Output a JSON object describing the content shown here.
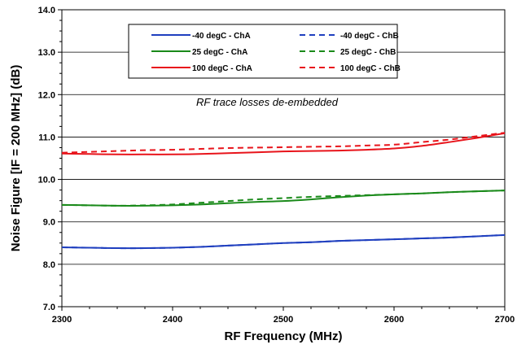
{
  "chart_data": {
    "type": "line",
    "xlabel": "RF Frequency (MHz)",
    "ylabel": "Noise Figure [IF = 200 MHz] (dB)",
    "xlim": [
      2300,
      2700
    ],
    "ylim": [
      7.0,
      14.0
    ],
    "xticks": [
      "2300",
      "2400",
      "2500",
      "2600",
      "2700"
    ],
    "yticks": [
      "7.0",
      "8.0",
      "9.0",
      "10.0",
      "11.0",
      "12.0",
      "13.0",
      "14.0"
    ],
    "grid": "horizontal",
    "legend_position": "top",
    "annotation": "RF trace losses de-embedded",
    "x": [
      2300,
      2325,
      2350,
      2375,
      2400,
      2425,
      2450,
      2475,
      2500,
      2525,
      2550,
      2575,
      2600,
      2625,
      2650,
      2675,
      2700
    ],
    "series": [
      {
        "name": "-40 degC - ChA",
        "color": "#1f3fbf",
        "dash": "solid",
        "values": [
          8.4,
          8.39,
          8.38,
          8.38,
          8.39,
          8.41,
          8.44,
          8.47,
          8.5,
          8.52,
          8.55,
          8.57,
          8.59,
          8.61,
          8.63,
          8.66,
          8.69
        ]
      },
      {
        "name": "-40 degC - ChB",
        "color": "#1f3fbf",
        "dash": "dashed",
        "values": [
          8.4,
          8.39,
          8.38,
          8.38,
          8.39,
          8.41,
          8.44,
          8.47,
          8.5,
          8.52,
          8.55,
          8.57,
          8.59,
          8.61,
          8.63,
          8.66,
          8.69
        ]
      },
      {
        "name": "25 degC - ChA",
        "color": "#1a8a1a",
        "dash": "solid",
        "values": [
          9.4,
          9.39,
          9.38,
          9.38,
          9.39,
          9.41,
          9.44,
          9.47,
          9.49,
          9.53,
          9.58,
          9.62,
          9.65,
          9.67,
          9.7,
          9.72,
          9.74
        ]
      },
      {
        "name": "25 degC - ChB",
        "color": "#1a8a1a",
        "dash": "dashed",
        "values": [
          9.4,
          9.39,
          9.38,
          9.39,
          9.41,
          9.45,
          9.49,
          9.53,
          9.56,
          9.59,
          9.61,
          9.63,
          9.65,
          9.67,
          9.7,
          9.72,
          9.74
        ]
      },
      {
        "name": "100 degC - ChA",
        "color": "#e8141b",
        "dash": "solid",
        "values": [
          10.61,
          10.6,
          10.59,
          10.59,
          10.59,
          10.6,
          10.62,
          10.64,
          10.66,
          10.67,
          10.68,
          10.7,
          10.73,
          10.79,
          10.88,
          10.98,
          11.09
        ]
      },
      {
        "name": "100 degC - ChB",
        "color": "#e8141b",
        "dash": "dashed",
        "values": [
          10.63,
          10.65,
          10.67,
          10.69,
          10.7,
          10.72,
          10.74,
          10.75,
          10.76,
          10.77,
          10.78,
          10.8,
          10.82,
          10.88,
          10.94,
          11.02,
          11.1
        ]
      }
    ]
  }
}
